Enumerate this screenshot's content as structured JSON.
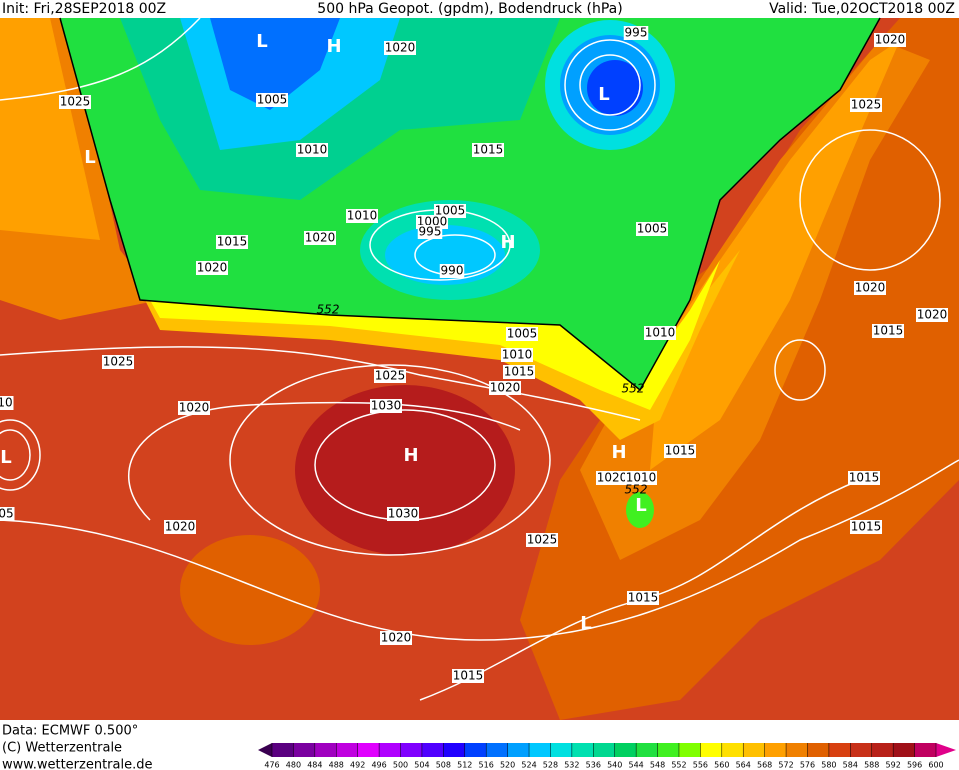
{
  "header": {
    "init": "Init: Fri,28SEP2018 00Z",
    "title": "500 hPa Geopot. (gpdm), Bodendruck (hPa)",
    "valid": "Valid: Tue,02OCT2018 00Z"
  },
  "isobar_labels": [
    "1025",
    "1020",
    "1005",
    "1010",
    "1015",
    "1020",
    "1015",
    "1010",
    "1005",
    "1000",
    "995",
    "990",
    "1020",
    "995",
    "1020",
    "1025",
    "1005",
    "1020",
    "1015",
    "1020",
    "1005",
    "1010",
    "1015",
    "1020",
    "1010",
    "1025",
    "1025",
    "1030",
    "1020",
    "1030",
    "1020",
    "1025",
    "1015",
    "1020",
    "1010",
    "1015",
    "1015",
    "1015",
    "1020",
    "1015",
    "10",
    "05"
  ],
  "contour_552_labels": [
    "552",
    "552",
    "552"
  ],
  "pressure_centers": [
    "L",
    "H",
    "L",
    "L",
    "H",
    "H",
    "H",
    "L",
    "L",
    "L"
  ],
  "footer": {
    "data": "Data: ECMWF  0.500°",
    "copyright": "(C) Wetterzentrale",
    "url": "www.wetterzentrale.de"
  },
  "color_scale": {
    "values": [
      476,
      480,
      484,
      488,
      492,
      496,
      500,
      504,
      508,
      512,
      516,
      520,
      524,
      528,
      532,
      536,
      540,
      544,
      548,
      552,
      556,
      560,
      564,
      568,
      572,
      576,
      580,
      584,
      588,
      592,
      596,
      600
    ],
    "colors": [
      "#3a0050",
      "#5a0080",
      "#7a00a0",
      "#a000c0",
      "#c000e0",
      "#e000ff",
      "#b000ff",
      "#8000ff",
      "#5000ff",
      "#2000ff",
      "#0040ff",
      "#0070ff",
      "#00a0ff",
      "#00c8ff",
      "#00e0e0",
      "#00e0b0",
      "#00d890",
      "#00d060",
      "#20e040",
      "#40f020",
      "#80ff00",
      "#ffff00",
      "#ffe000",
      "#ffc000",
      "#ffa000",
      "#f08000",
      "#e06000",
      "#d84010",
      "#c83018",
      "#b82018",
      "#a01018",
      "#c00060",
      "#e0008a"
    ]
  }
}
